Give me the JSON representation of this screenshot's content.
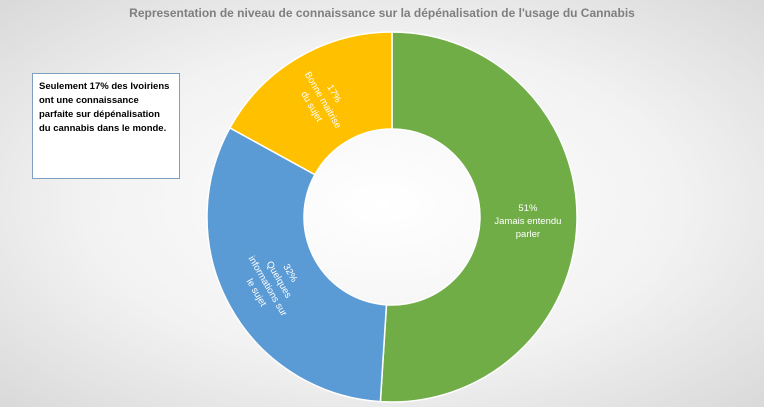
{
  "chart_data": {
    "type": "doughnut",
    "title": "Representation de niveau de connaissance sur la dépénalisation de l'usage du Cannabis",
    "categories": [
      "Jamais entendu parler",
      "Quelques informations sur le sujet",
      "Bonne maitrise du sujet"
    ],
    "values": [
      51,
      32,
      17
    ],
    "value_labels": [
      "51%",
      "32%",
      "17%"
    ],
    "colors": [
      "#70ad47",
      "#5b9bd5",
      "#ffc000"
    ],
    "annotation": "Seulement 17% des Ivoiriens ont une connaissance parfaite sur dépénalisation du cannabis dans le monde."
  }
}
